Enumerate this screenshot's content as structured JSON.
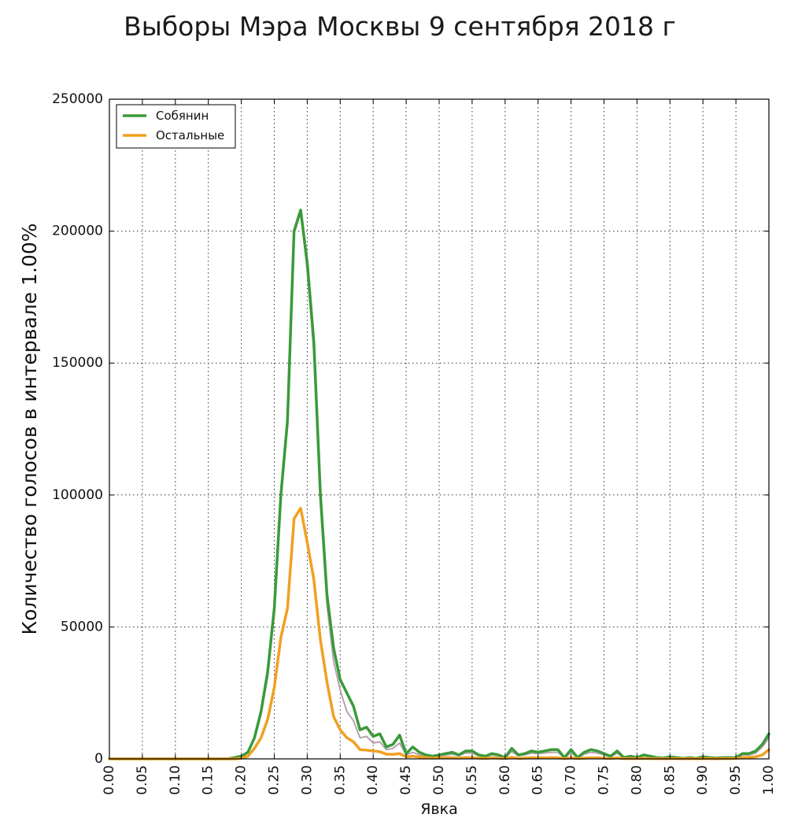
{
  "chart_data": {
    "type": "line",
    "title": "Выборы Мэра Москвы 9 сентября 2018 г",
    "xlabel": "Явка",
    "ylabel": "Количество голосов в интервале 1.00%",
    "xlim": [
      0.0,
      1.0
    ],
    "ylim": [
      0,
      250000
    ],
    "xticks": [
      "0.00",
      "0.05",
      "0.10",
      "0.15",
      "0.20",
      "0.25",
      "0.30",
      "0.35",
      "0.40",
      "0.45",
      "0.50",
      "0.55",
      "0.60",
      "0.65",
      "0.70",
      "0.75",
      "0.80",
      "0.85",
      "0.90",
      "0.95",
      "1.00"
    ],
    "yticks": [
      "0",
      "50000",
      "100000",
      "150000",
      "200000",
      "250000"
    ],
    "grid": true,
    "legend_position": "top-left",
    "colors": {
      "sobyanin": "#3a9a3a",
      "others": "#f0a020",
      "total": "#b8a0b0"
    },
    "x": [
      0.0,
      0.01,
      0.02,
      0.03,
      0.04,
      0.05,
      0.06,
      0.07,
      0.08,
      0.09,
      0.1,
      0.11,
      0.12,
      0.13,
      0.14,
      0.15,
      0.16,
      0.17,
      0.18,
      0.19,
      0.2,
      0.21,
      0.22,
      0.23,
      0.24,
      0.25,
      0.26,
      0.27,
      0.28,
      0.29,
      0.3,
      0.31,
      0.32,
      0.33,
      0.34,
      0.35,
      0.36,
      0.37,
      0.38,
      0.39,
      0.4,
      0.41,
      0.42,
      0.43,
      0.44,
      0.45,
      0.46,
      0.47,
      0.48,
      0.49,
      0.5,
      0.51,
      0.52,
      0.53,
      0.54,
      0.55,
      0.56,
      0.57,
      0.58,
      0.59,
      0.6,
      0.61,
      0.62,
      0.63,
      0.64,
      0.65,
      0.66,
      0.67,
      0.68,
      0.69,
      0.7,
      0.71,
      0.72,
      0.73,
      0.74,
      0.75,
      0.76,
      0.77,
      0.78,
      0.79,
      0.8,
      0.81,
      0.82,
      0.83,
      0.84,
      0.85,
      0.86,
      0.87,
      0.88,
      0.89,
      0.9,
      0.91,
      0.92,
      0.93,
      0.94,
      0.95,
      0.96,
      0.97,
      0.98,
      0.99,
      1.0
    ],
    "series": [
      {
        "name": "Собянин",
        "key": "sobyanin",
        "values": [
          0,
          0,
          0,
          0,
          0,
          0,
          0,
          0,
          0,
          0,
          0,
          0,
          0,
          0,
          0,
          0,
          0,
          0,
          0,
          500,
          1000,
          2500,
          8000,
          18000,
          33000,
          57000,
          100000,
          128000,
          200000,
          208000,
          188000,
          158000,
          100000,
          62000,
          42000,
          30000,
          25000,
          20000,
          11000,
          12000,
          8500,
          9500,
          4500,
          5500,
          9000,
          2000,
          4500,
          2500,
          1500,
          1000,
          1500,
          2000,
          2500,
          1500,
          3000,
          3000,
          1500,
          1000,
          2000,
          1500,
          500,
          4000,
          1500,
          2000,
          3000,
          2500,
          3000,
          3500,
          3500,
          500,
          3500,
          500,
          2500,
          3500,
          3000,
          2000,
          1000,
          3000,
          500,
          1000,
          500,
          1500,
          1000,
          500,
          300,
          800,
          500,
          200,
          500,
          200,
          800,
          500,
          300,
          500,
          500,
          500,
          2000,
          2000,
          3000,
          5500,
          9500
        ]
      },
      {
        "name": "Остальные",
        "key": "others",
        "values": [
          0,
          0,
          0,
          0,
          0,
          0,
          0,
          0,
          0,
          0,
          0,
          0,
          0,
          0,
          0,
          0,
          0,
          0,
          0,
          0,
          200,
          1000,
          4000,
          8000,
          15000,
          27000,
          46000,
          57000,
          91000,
          95000,
          82000,
          68000,
          45000,
          29000,
          16000,
          11000,
          8000,
          6500,
          3500,
          3300,
          3000,
          2700,
          1800,
          1700,
          2000,
          800,
          1000,
          700,
          500,
          300,
          400,
          500,
          400,
          300,
          500,
          500,
          300,
          200,
          400,
          300,
          100,
          600,
          200,
          300,
          400,
          400,
          400,
          500,
          400,
          100,
          400,
          100,
          300,
          400,
          400,
          300,
          100,
          400,
          100,
          100,
          100,
          200,
          100,
          100,
          50,
          100,
          100,
          50,
          100,
          50,
          100,
          100,
          50,
          100,
          100,
          200,
          500,
          600,
          800,
          1500,
          3500
        ]
      },
      {
        "name": "",
        "key": "total",
        "values": [
          0,
          0,
          0,
          0,
          0,
          0,
          0,
          0,
          0,
          0,
          0,
          0,
          0,
          0,
          0,
          0,
          0,
          0,
          0,
          500,
          1000,
          2500,
          7500,
          17000,
          31000,
          55000,
          98000,
          126000,
          199000,
          207000,
          185000,
          154000,
          97000,
          58000,
          37000,
          26000,
          18000,
          14500,
          8000,
          8500,
          6000,
          6500,
          3500,
          4000,
          6000,
          1500,
          2500,
          1500,
          1000,
          800,
          1200,
          1500,
          1800,
          1200,
          2200,
          2200,
          1200,
          800,
          1500,
          1200,
          400,
          2800,
          1200,
          1500,
          2200,
          2000,
          2200,
          2500,
          2500,
          400,
          2500,
          400,
          1800,
          2500,
          2200,
          1500,
          800,
          2200,
          400,
          800,
          400,
          1200,
          800,
          400,
          250,
          600,
          400,
          150,
          400,
          150,
          600,
          400,
          250,
          400,
          400,
          400,
          1500,
          1500,
          2200,
          4500,
          8000
        ]
      }
    ]
  }
}
